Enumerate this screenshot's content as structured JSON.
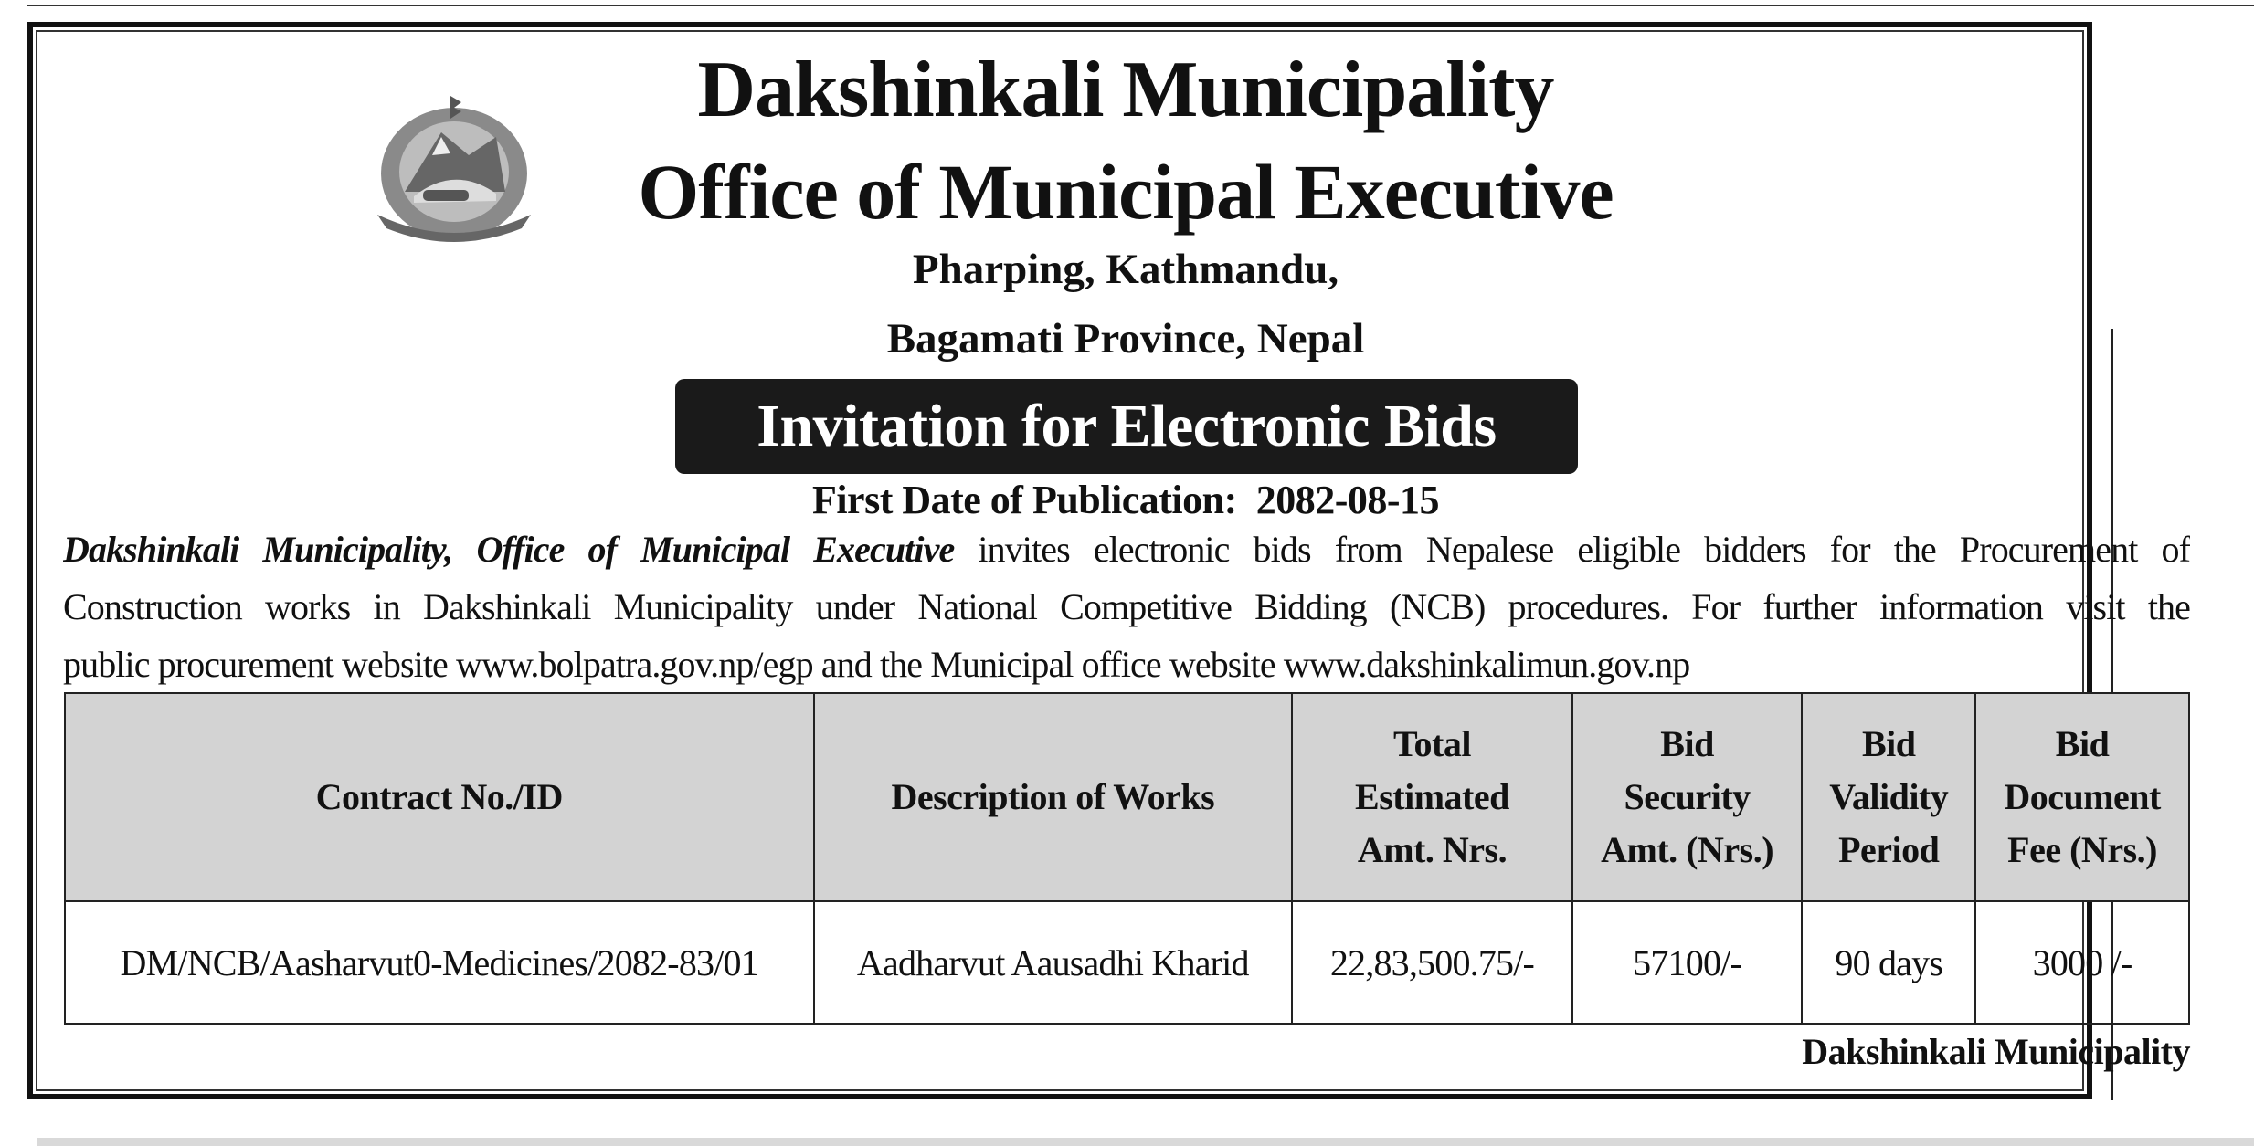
{
  "header": {
    "title": "Dakshinkali Municipality",
    "subtitle": "Office of Municipal Executive",
    "address_line1": "Pharping, Kathmandu,",
    "address_line2": "Bagamati Province, Nepal",
    "logo_icon": "nepal-government-emblem"
  },
  "notice": {
    "banner": "Invitation for Electronic Bids",
    "publication_label": "First Date of Publication:",
    "publication_date": "2082-08-15"
  },
  "body": {
    "lead": "Dakshinkali Municipality, Office of Municipal Executive",
    "line1_rest": " invites electronic bids from Nepalese eligible bidders for the Procurement of",
    "line2": "Construction works in Dakshinkali Municipality under National Competitive Bidding (NCB) procedures. For further information visit the",
    "line3": "public procurement website www.bolpatra.gov.np/egp and the Municipal office website www.dakshinkalimun.gov.np"
  },
  "table": {
    "headers": [
      [
        "Contract No./ID"
      ],
      [
        "Description of Works"
      ],
      [
        "Total",
        "Estimated",
        "Amt. Nrs."
      ],
      [
        "Bid",
        "Security",
        "Amt. (Nrs.)"
      ],
      [
        "Bid",
        "Validity",
        "Period"
      ],
      [
        "Bid",
        "Document",
        "Fee (Nrs.)"
      ]
    ],
    "rows": [
      [
        "DM/NCB/Aasharvut0-Medicines/2082-83/01",
        "Aadharvut Aausadhi Kharid",
        "22,83,500.75/-",
        "57100/-",
        "90 days",
        "3000 /-"
      ]
    ]
  },
  "footer": {
    "signature": "Dakshinkali Municipality"
  }
}
